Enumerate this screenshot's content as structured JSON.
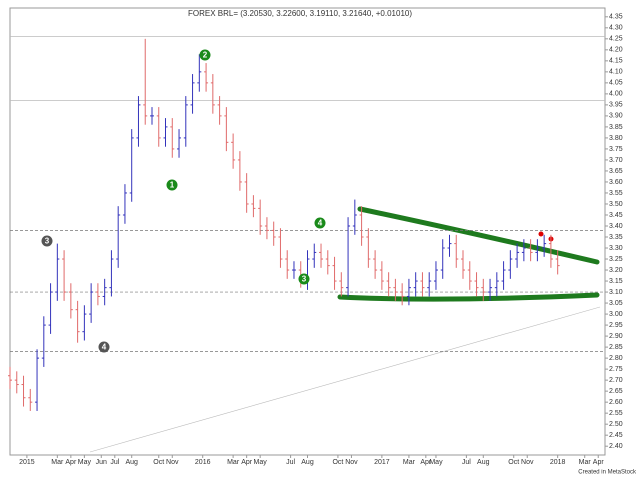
{
  "chart_data": {
    "type": "ohlc",
    "title": "FOREX BRL= (3.20530, 3.22600, 3.19110, 3.21640, +0.01010)",
    "footer": "Created in MetaStock",
    "up_color": "#3333bb",
    "down_color": "#e06a6a",
    "xlim": [
      0,
      176
    ],
    "ylim": [
      2.36,
      4.39
    ],
    "xticks": [
      {
        "value": 5,
        "label": "2015"
      },
      {
        "value": 14,
        "label": "Mar"
      },
      {
        "value": 18,
        "label": "Apr"
      },
      {
        "value": 22,
        "label": "May"
      },
      {
        "value": 27,
        "label": "Jun"
      },
      {
        "value": 31,
        "label": "Jul"
      },
      {
        "value": 36,
        "label": "Aug"
      },
      {
        "value": 44,
        "label": "Oct"
      },
      {
        "value": 48,
        "label": "Nov"
      },
      {
        "value": 57,
        "label": "2016"
      },
      {
        "value": 66,
        "label": "Mar"
      },
      {
        "value": 70,
        "label": "Apr"
      },
      {
        "value": 74,
        "label": "May"
      },
      {
        "value": 83,
        "label": "Jul"
      },
      {
        "value": 88,
        "label": "Aug"
      },
      {
        "value": 97,
        "label": "Oct"
      },
      {
        "value": 101,
        "label": "Nov"
      },
      {
        "value": 110,
        "label": "2017"
      },
      {
        "value": 118,
        "label": "Mar"
      },
      {
        "value": 123,
        "label": "Apr"
      },
      {
        "value": 126,
        "label": "May"
      },
      {
        "value": 135,
        "label": "Jul"
      },
      {
        "value": 140,
        "label": "Aug"
      },
      {
        "value": 149,
        "label": "Oct"
      },
      {
        "value": 153,
        "label": "Nov"
      },
      {
        "value": 162,
        "label": "2018"
      },
      {
        "value": 170,
        "label": "Mar"
      },
      {
        "value": 174,
        "label": "Apr"
      }
    ],
    "yticks": [
      {
        "value": 2.4,
        "label": "2.40"
      },
      2.45,
      {
        "value": 2.5,
        "label": "2.50"
      },
      2.55,
      {
        "value": 2.6,
        "label": "2.60"
      },
      2.65,
      {
        "value": 2.7,
        "label": "2.70"
      },
      2.75,
      {
        "value": 2.8,
        "label": "2.80"
      },
      2.85,
      {
        "value": 2.9,
        "label": "2.90"
      },
      2.95,
      {
        "value": 3,
        "label": "3.00"
      },
      3.05,
      {
        "value": 3.1,
        "label": "3.10"
      },
      3.15,
      {
        "value": 3.2,
        "label": "3.20"
      },
      3.25,
      {
        "value": 3.3,
        "label": "3.30"
      },
      3.35,
      {
        "value": 3.4,
        "label": "3.40"
      },
      3.45,
      {
        "value": 3.5,
        "label": "3.50"
      },
      3.55,
      {
        "value": 3.6,
        "label": "3.60"
      },
      3.65,
      {
        "value": 3.7,
        "label": "3.70"
      },
      3.75,
      {
        "value": 3.8,
        "label": "3.80"
      },
      3.85,
      {
        "value": 3.9,
        "label": "3.90"
      },
      3.95,
      {
        "value": 4,
        "label": "4.00"
      },
      4.05,
      {
        "value": 4.1,
        "label": "4.10"
      },
      4.15,
      {
        "value": 4.2,
        "label": "4.20"
      },
      4.25,
      {
        "value": 4.3,
        "label": "4.30"
      },
      4.35
    ],
    "hlines": [
      {
        "value": 4.26,
        "style": "solid"
      },
      {
        "value": 3.97,
        "style": "solid"
      },
      {
        "value": 3.38,
        "style": "dashed"
      },
      {
        "value": 3.1,
        "style": "dashed"
      },
      {
        "value": 2.83,
        "style": "dashed"
      }
    ],
    "annotations": [
      {
        "label": "1",
        "color": "#1a8a1a"
      },
      {
        "label": "2",
        "color": "#1a8a1a"
      },
      {
        "label": "3",
        "color": "#1a8a1a"
      },
      {
        "label": "4",
        "color": "#1a8a1a"
      },
      {
        "label": "3",
        "color": "#555555"
      },
      {
        "label": "4",
        "color": "#555555"
      }
    ],
    "x": [
      0,
      2,
      4,
      6,
      8,
      10,
      12,
      14,
      16,
      18,
      20,
      22,
      24,
      26,
      28,
      30,
      32,
      34,
      36,
      38,
      40,
      42,
      44,
      46,
      48,
      50,
      52,
      54,
      56,
      58,
      60,
      62,
      64,
      66,
      68,
      70,
      72,
      74,
      76,
      78,
      80,
      82,
      84,
      86,
      88,
      90,
      92,
      94,
      96,
      98,
      100,
      102,
      104,
      106,
      108,
      110,
      112,
      114,
      116,
      118,
      120,
      122,
      124,
      126,
      128,
      130,
      132,
      134,
      136,
      138,
      140,
      142,
      144,
      146,
      148,
      150,
      152,
      154,
      156,
      158,
      160,
      162
    ],
    "open": [
      2.72,
      2.7,
      2.68,
      2.62,
      2.6,
      2.8,
      2.95,
      3.1,
      3.25,
      3.1,
      3.02,
      2.92,
      3.0,
      3.1,
      3.08,
      3.12,
      3.25,
      3.45,
      3.55,
      3.8,
      3.95,
      3.9,
      3.9,
      3.8,
      3.85,
      3.75,
      3.8,
      3.95,
      4.05,
      4.1,
      4.05,
      3.95,
      3.9,
      3.78,
      3.7,
      3.6,
      3.5,
      3.48,
      3.4,
      3.38,
      3.35,
      3.25,
      3.2,
      3.2,
      3.15,
      3.25,
      3.28,
      3.25,
      3.22,
      3.15,
      3.12,
      3.4,
      3.45,
      3.35,
      3.25,
      3.2,
      3.15,
      3.12,
      3.1,
      3.08,
      3.12,
      3.15,
      3.12,
      3.15,
      3.2,
      3.3,
      3.32,
      3.25,
      3.2,
      3.15,
      3.12,
      3.1,
      3.12,
      3.15,
      3.2,
      3.25,
      3.28,
      3.3,
      3.28,
      3.3,
      3.32,
      3.25
    ],
    "high": [
      2.76,
      2.74,
      2.72,
      2.66,
      2.84,
      2.99,
      3.14,
      3.32,
      3.29,
      3.14,
      3.06,
      3.04,
      3.14,
      3.14,
      3.16,
      3.29,
      3.49,
      3.59,
      3.84,
      3.99,
      4.25,
      3.94,
      3.94,
      3.89,
      3.89,
      3.84,
      3.99,
      4.09,
      4.18,
      4.14,
      4.09,
      3.99,
      3.94,
      3.82,
      3.74,
      3.64,
      3.54,
      3.52,
      3.44,
      3.42,
      3.39,
      3.29,
      3.24,
      3.24,
      3.29,
      3.32,
      3.32,
      3.29,
      3.26,
      3.19,
      3.44,
      3.52,
      3.49,
      3.39,
      3.29,
      3.24,
      3.19,
      3.16,
      3.14,
      3.16,
      3.19,
      3.19,
      3.19,
      3.24,
      3.34,
      3.36,
      3.36,
      3.29,
      3.24,
      3.19,
      3.16,
      3.16,
      3.19,
      3.24,
      3.29,
      3.32,
      3.34,
      3.34,
      3.34,
      3.36,
      3.36,
      3.29
    ],
    "low": [
      2.66,
      2.64,
      2.58,
      2.56,
      2.56,
      2.76,
      2.91,
      3.06,
      3.06,
      2.98,
      2.87,
      2.88,
      2.96,
      3.04,
      3.04,
      3.08,
      3.21,
      3.41,
      3.51,
      3.76,
      3.86,
      3.86,
      3.76,
      3.76,
      3.71,
      3.71,
      3.76,
      3.91,
      4.01,
      4.01,
      3.91,
      3.86,
      3.74,
      3.66,
      3.56,
      3.46,
      3.44,
      3.36,
      3.34,
      3.31,
      3.21,
      3.16,
      3.16,
      3.12,
      3.11,
      3.21,
      3.21,
      3.18,
      3.11,
      3.08,
      3.08,
      3.36,
      3.31,
      3.21,
      3.16,
      3.11,
      3.08,
      3.06,
      3.04,
      3.04,
      3.08,
      3.08,
      3.08,
      3.11,
      3.16,
      3.26,
      3.21,
      3.16,
      3.11,
      3.08,
      3.06,
      3.06,
      3.08,
      3.11,
      3.16,
      3.21,
      3.24,
      3.24,
      3.24,
      3.26,
      3.21,
      3.18
    ],
    "close": [
      2.7,
      2.68,
      2.62,
      2.6,
      2.8,
      2.95,
      3.1,
      3.25,
      3.1,
      3.02,
      2.92,
      3.0,
      3.1,
      3.08,
      3.12,
      3.25,
      3.45,
      3.55,
      3.8,
      3.95,
      3.9,
      3.9,
      3.8,
      3.85,
      3.75,
      3.8,
      3.95,
      4.05,
      4.1,
      4.05,
      3.95,
      3.9,
      3.78,
      3.7,
      3.6,
      3.5,
      3.48,
      3.4,
      3.38,
      3.35,
      3.25,
      3.2,
      3.2,
      3.15,
      3.25,
      3.28,
      3.25,
      3.22,
      3.15,
      3.12,
      3.4,
      3.45,
      3.35,
      3.25,
      3.2,
      3.15,
      3.12,
      3.1,
      3.08,
      3.12,
      3.15,
      3.12,
      3.15,
      3.2,
      3.3,
      3.32,
      3.25,
      3.2,
      3.15,
      3.12,
      3.1,
      3.12,
      3.15,
      3.2,
      3.25,
      3.28,
      3.3,
      3.28,
      3.3,
      3.32,
      3.25,
      3.22
    ]
  }
}
